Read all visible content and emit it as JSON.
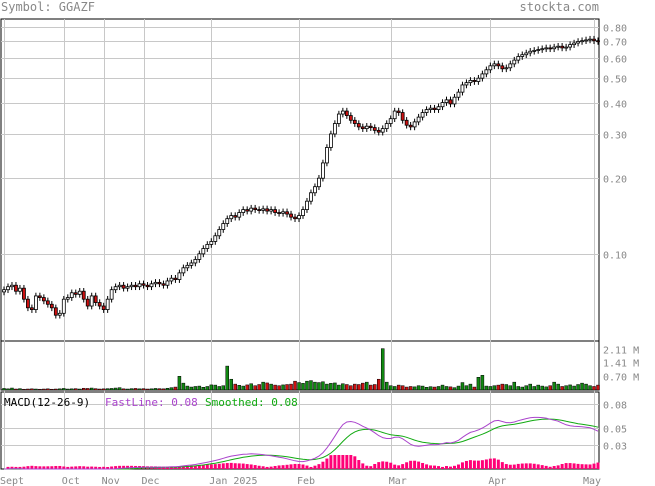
{
  "header": {
    "symbol_label": "Symbol: GGAZF",
    "site": "stockta.com"
  },
  "colors": {
    "up": "#ffffff",
    "down": "#cc1111",
    "vol_up": "#118811",
    "vol_down": "#cc1111",
    "fast": "#aa44cc",
    "smooth": "#11aa11",
    "hist": "#ff0077",
    "grid": "#c8c8c8"
  },
  "chart_data": {
    "type": "candlestick",
    "price_axis": {
      "scale": "log",
      "ticks": [
        {
          "v": 0.8,
          "label": "0.80"
        },
        {
          "v": 0.7,
          "label": "0.70"
        },
        {
          "v": 0.6,
          "label": "0.60"
        },
        {
          "v": 0.5,
          "label": "0.50"
        },
        {
          "v": 0.4,
          "label": "0.40"
        },
        {
          "v": 0.3,
          "label": "0.30"
        },
        {
          "v": 0.2,
          "label": "0.20"
        },
        {
          "v": 0.1,
          "label": "0.10"
        }
      ]
    },
    "volume_axis": {
      "unit": "M",
      "max": 2.5,
      "ticks": [
        {
          "v": 2.11,
          "label": "2.11 M"
        },
        {
          "v": 1.41,
          "label": "1.41 M"
        },
        {
          "v": 0.7,
          "label": "0.70 M"
        }
      ]
    },
    "macd": {
      "title": "MACD(12-26-9)",
      "fast_label": "FastLine: 0.08",
      "smooth_label": "Smoothed: 0.08",
      "fast_last": 0.08,
      "smooth_last": 0.08,
      "ticks": [
        {
          "v": 0.08,
          "label": "0.08"
        },
        {
          "v": 0.05,
          "label": "0.05"
        },
        {
          "v": 0.03,
          "label": "0.03"
        }
      ]
    },
    "x_labels": [
      {
        "i": 0,
        "label": "Sept"
      },
      {
        "i": 15,
        "label": "Oct"
      },
      {
        "i": 25,
        "label": "Nov"
      },
      {
        "i": 35,
        "label": "Dec"
      },
      {
        "i": 52,
        "label": "Jan 2025"
      },
      {
        "i": 74,
        "label": "Feb"
      },
      {
        "i": 97,
        "label": "Mar"
      },
      {
        "i": 122,
        "label": "Apr"
      },
      {
        "i": 148,
        "label": "May"
      }
    ],
    "close": [
      0.072,
      0.074,
      0.075,
      0.071,
      0.073,
      0.066,
      0.061,
      0.06,
      0.068,
      0.067,
      0.065,
      0.063,
      0.061,
      0.057,
      0.058,
      0.066,
      0.067,
      0.07,
      0.069,
      0.071,
      0.066,
      0.062,
      0.068,
      0.064,
      0.062,
      0.06,
      0.066,
      0.072,
      0.074,
      0.075,
      0.073,
      0.074,
      0.075,
      0.074,
      0.076,
      0.075,
      0.074,
      0.076,
      0.077,
      0.076,
      0.075,
      0.078,
      0.08,
      0.079,
      0.084,
      0.088,
      0.09,
      0.092,
      0.095,
      0.1,
      0.105,
      0.109,
      0.112,
      0.118,
      0.125,
      0.132,
      0.138,
      0.142,
      0.14,
      0.146,
      0.15,
      0.148,
      0.152,
      0.15,
      0.149,
      0.151,
      0.148,
      0.15,
      0.146,
      0.145,
      0.147,
      0.144,
      0.14,
      0.138,
      0.142,
      0.15,
      0.162,
      0.175,
      0.185,
      0.2,
      0.23,
      0.265,
      0.3,
      0.33,
      0.36,
      0.37,
      0.355,
      0.34,
      0.33,
      0.32,
      0.315,
      0.322,
      0.318,
      0.31,
      0.305,
      0.315,
      0.33,
      0.345,
      0.37,
      0.365,
      0.34,
      0.325,
      0.32,
      0.335,
      0.35,
      0.365,
      0.375,
      0.38,
      0.375,
      0.385,
      0.4,
      0.41,
      0.395,
      0.42,
      0.44,
      0.47,
      0.48,
      0.49,
      0.485,
      0.5,
      0.52,
      0.54,
      0.56,
      0.57,
      0.56,
      0.545,
      0.55,
      0.57,
      0.59,
      0.61,
      0.62,
      0.63,
      0.64,
      0.645,
      0.65,
      0.655,
      0.66,
      0.655,
      0.665,
      0.67,
      0.66,
      0.665,
      0.68,
      0.69,
      0.7,
      0.705,
      0.71,
      0.715,
      0.705,
      0.7
    ],
    "volume": [
      0.08,
      0.06,
      0.1,
      0.05,
      0.07,
      0.04,
      0.05,
      0.06,
      0.05,
      0.04,
      0.05,
      0.06,
      0.04,
      0.05,
      0.06,
      0.08,
      0.05,
      0.06,
      0.07,
      0.05,
      0.09,
      0.08,
      0.1,
      0.07,
      0.05,
      0.06,
      0.07,
      0.08,
      0.1,
      0.12,
      0.06,
      0.05,
      0.07,
      0.08,
      0.06,
      0.07,
      0.05,
      0.06,
      0.08,
      0.07,
      0.06,
      0.09,
      0.12,
      0.15,
      0.7,
      0.35,
      0.2,
      0.15,
      0.18,
      0.2,
      0.14,
      0.18,
      0.26,
      0.25,
      0.18,
      0.22,
      1.22,
      0.55,
      0.3,
      0.24,
      0.2,
      0.26,
      0.32,
      0.22,
      0.28,
      0.4,
      0.36,
      0.3,
      0.25,
      0.22,
      0.26,
      0.28,
      0.3,
      0.45,
      0.38,
      0.34,
      0.45,
      0.48,
      0.4,
      0.38,
      0.42,
      0.3,
      0.34,
      0.36,
      0.25,
      0.32,
      0.28,
      0.22,
      0.3,
      0.28,
      0.35,
      0.4,
      0.25,
      0.28,
      0.55,
      2.11,
      0.4,
      0.22,
      0.18,
      0.25,
      0.22,
      0.15,
      0.18,
      0.16,
      0.22,
      0.2,
      0.14,
      0.17,
      0.15,
      0.18,
      0.25,
      0.18,
      0.16,
      0.12,
      0.2,
      0.38,
      0.22,
      0.3,
      0.15,
      0.65,
      0.75,
      0.2,
      0.18,
      0.22,
      0.25,
      0.3,
      0.28,
      0.22,
      0.4,
      0.18,
      0.15,
      0.22,
      0.3,
      0.18,
      0.25,
      0.2,
      0.16,
      0.22,
      0.4,
      0.3,
      0.18,
      0.22,
      0.26,
      0.2,
      0.28,
      0.35,
      0.3,
      0.22,
      0.18,
      0.25
    ]
  }
}
